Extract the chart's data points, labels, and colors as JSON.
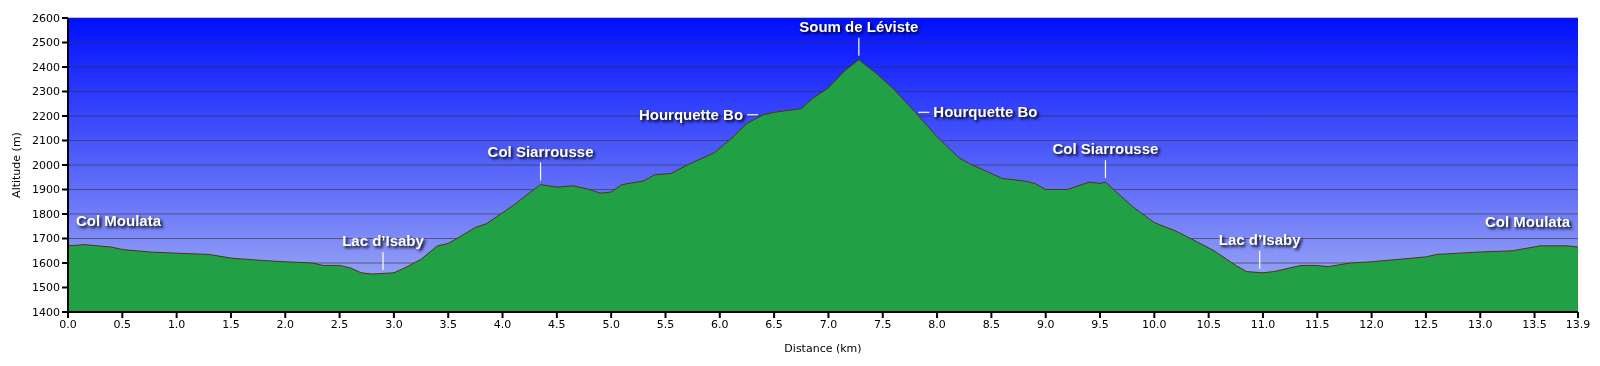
{
  "chart_data": {
    "type": "area",
    "xlabel": "Distance    (km)",
    "ylabel": "Altitude (m)",
    "x": [
      0,
      0.15,
      0.4,
      0.5,
      0.75,
      1.0,
      1.3,
      1.5,
      1.8,
      2.0,
      2.25,
      2.35,
      2.5,
      2.6,
      2.7,
      2.8,
      3.0,
      3.1,
      3.25,
      3.4,
      3.5,
      3.6,
      3.75,
      3.85,
      4.0,
      4.1,
      4.2,
      4.35,
      4.5,
      4.65,
      4.8,
      4.9,
      5.0,
      5.1,
      5.3,
      5.4,
      5.55,
      5.7,
      5.8,
      5.95,
      6.1,
      6.25,
      6.4,
      6.5,
      6.75,
      6.85,
      7.0,
      7.15,
      7.28,
      7.45,
      7.6,
      7.8,
      8.0,
      8.2,
      8.3,
      8.45,
      8.6,
      8.8,
      8.9,
      9.0,
      9.2,
      9.4,
      9.5,
      9.55,
      9.8,
      10.0,
      10.2,
      10.4,
      10.55,
      10.75,
      10.85,
      11.0,
      11.1,
      11.35,
      11.5,
      11.6,
      11.8,
      12.0,
      12.5,
      12.6,
      13.0,
      13.3,
      13.55,
      13.8,
      13.9
    ],
    "series": [
      {
        "color": "#22a046",
        "values": [
          1670,
          1675,
          1665,
          1655,
          1645,
          1640,
          1635,
          1620,
          1610,
          1605,
          1600,
          1590,
          1590,
          1580,
          1560,
          1555,
          1560,
          1580,
          1615,
          1670,
          1680,
          1705,
          1745,
          1760,
          1805,
          1835,
          1870,
          1920,
          1910,
          1915,
          1900,
          1885,
          1890,
          1920,
          1935,
          1960,
          1965,
          2000,
          2020,
          2050,
          2105,
          2170,
          2205,
          2215,
          2230,
          2270,
          2315,
          2385,
          2430,
          2370,
          2310,
          2215,
          2115,
          2030,
          2005,
          1975,
          1945,
          1935,
          1925,
          1900,
          1900,
          1930,
          1925,
          1930,
          1830,
          1765,
          1730,
          1685,
          1650,
          1590,
          1565,
          1560,
          1565,
          1590,
          1590,
          1585,
          1600,
          1605,
          1625,
          1635,
          1645,
          1650,
          1670,
          1670,
          1665
        ]
      }
    ],
    "xlim": [
      0,
      13.9
    ],
    "xticks": [
      {
        "value": 0,
        "label": "0.0"
      },
      {
        "value": 0.5,
        "label": "0.5"
      },
      {
        "value": 1,
        "label": "1.0"
      },
      {
        "value": 1.5,
        "label": "1.5"
      },
      {
        "value": 2,
        "label": "2.0"
      },
      {
        "value": 2.5,
        "label": "2.5"
      },
      {
        "value": 3,
        "label": "3.0"
      },
      {
        "value": 3.5,
        "label": "3.5"
      },
      {
        "value": 4,
        "label": "4.0"
      },
      {
        "value": 4.5,
        "label": "4.5"
      },
      {
        "value": 5,
        "label": "5.0"
      },
      {
        "value": 5.5,
        "label": "5.5"
      },
      {
        "value": 6,
        "label": "6.0"
      },
      {
        "value": 6.5,
        "label": "6.5"
      },
      {
        "value": 7,
        "label": "7.0"
      },
      {
        "value": 7.5,
        "label": "7.5"
      },
      {
        "value": 8,
        "label": "8.0"
      },
      {
        "value": 8.5,
        "label": "8.5"
      },
      {
        "value": 9,
        "label": "9.0"
      },
      {
        "value": 9.5,
        "label": "9.5"
      },
      {
        "value": 10,
        "label": "10.0"
      },
      {
        "value": 10.5,
        "label": "10.5"
      },
      {
        "value": 11,
        "label": "11.0"
      },
      {
        "value": 11.5,
        "label": "11.5"
      },
      {
        "value": 12,
        "label": "12.0"
      },
      {
        "value": 12.5,
        "label": "12.5"
      },
      {
        "value": 13,
        "label": "13.0"
      },
      {
        "value": 13.5,
        "label": "13.5"
      },
      {
        "value": 13.9,
        "label": "13.9"
      }
    ],
    "ylim": [
      1400,
      2600
    ],
    "yticks": [
      1400,
      1500,
      1600,
      1700,
      1800,
      1900,
      2000,
      2100,
      2200,
      2300,
      2400,
      2500,
      2600
    ],
    "grid": "y",
    "legend": false,
    "annotations": [
      {
        "text": "Col Moulata",
        "x": 0,
        "y": 1670
      },
      {
        "text": "Lac d’Isaby",
        "x": 2.9,
        "y": 1555
      },
      {
        "text": "Col Siarrousse",
        "x": 4.35,
        "y": 1920
      },
      {
        "text": "Hourquette Bo",
        "x": 6.38,
        "y": 2205
      },
      {
        "text": "Soum de Léviste",
        "x": 7.28,
        "y": 2430
      },
      {
        "text": "Hourquette Bo",
        "x": 7.8,
        "y": 2215
      },
      {
        "text": "Col Siarrousse",
        "x": 9.55,
        "y": 1930
      },
      {
        "text": "Lac d’Isaby",
        "x": 10.97,
        "y": 1560
      },
      {
        "text": "Col Moulata",
        "x": 13.9,
        "y": 1665
      }
    ]
  }
}
